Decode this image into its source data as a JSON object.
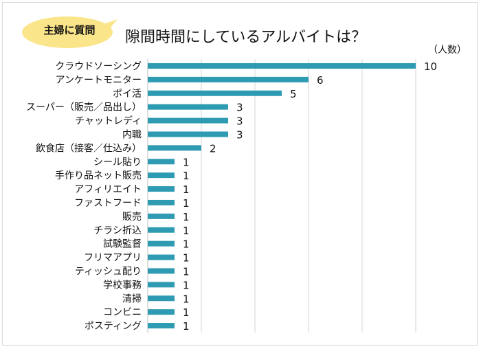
{
  "badge": {
    "label": "主婦に質問",
    "color": "#fbe58a"
  },
  "chart_data": {
    "type": "bar",
    "orientation": "horizontal",
    "title": "隙間時間にしているアルバイトは？",
    "unit": "（人数）",
    "categories": [
      "クラウドソーシング",
      "アンケートモニター",
      "ポイ活",
      "スーパー（販売／品出し）",
      "チャットレディ",
      "内職",
      "飲食店（接客／仕込み）",
      "シール貼り",
      "手作り品ネット販売",
      "アフィリエイト",
      "ファストフード",
      "販売",
      "チラシ折込",
      "試験監督",
      "フリマアプリ",
      "ティッシュ配り",
      "学校事務",
      "清掃",
      "コンビニ",
      "ポスティング"
    ],
    "values": [
      10,
      6,
      5,
      3,
      3,
      3,
      2,
      1,
      1,
      1,
      1,
      1,
      1,
      1,
      1,
      1,
      1,
      1,
      1,
      1
    ],
    "xlim": [
      0,
      10
    ],
    "grid": true,
    "bar_color": "#2e9bb3"
  }
}
